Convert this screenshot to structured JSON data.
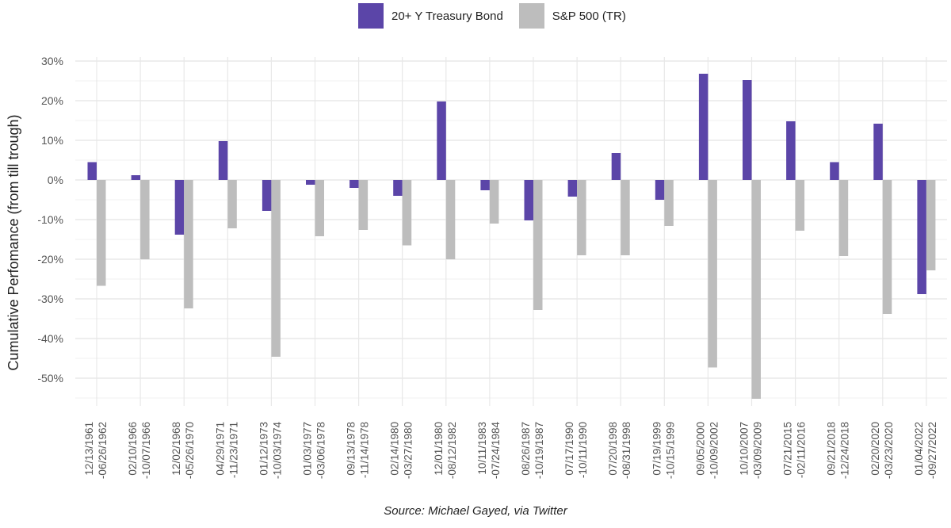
{
  "chart_data": {
    "type": "bar",
    "ylabel": "Cumulative Perfomance (from till trough)",
    "ylim": [
      -57,
      31
    ],
    "yticks": [
      30,
      20,
      10,
      0,
      -10,
      -20,
      -30,
      -40,
      -50
    ],
    "ytick_labels": [
      "30%",
      "20%",
      "10%",
      "0%",
      "-10%",
      "-20%",
      "-30%",
      "-40%",
      "-50%"
    ],
    "grid": true,
    "legend_position": "top-center",
    "categories": [
      [
        "12/13/1961",
        "-06/26/1962"
      ],
      [
        "02/10/1966",
        "-10/07/1966"
      ],
      [
        "12/02/1968",
        "-05/26/1970"
      ],
      [
        "04/29/1971",
        "-11/23/1971"
      ],
      [
        "01/12/1973",
        "-10/03/1974"
      ],
      [
        "01/03/1977",
        "-03/06/1978"
      ],
      [
        "09/13/1978",
        "-11/14/1978"
      ],
      [
        "02/14/1980",
        "-03/27/1980"
      ],
      [
        "12/01/1980",
        "-08/12/1982"
      ],
      [
        "10/11/1983",
        "-07/24/1984"
      ],
      [
        "08/26/1987",
        "-10/19/1987"
      ],
      [
        "07/17/1990",
        "-10/11/1990"
      ],
      [
        "07/20/1998",
        "-08/31/1998"
      ],
      [
        "07/19/1999",
        "-10/15/1999"
      ],
      [
        "09/05/2000",
        "-10/09/2002"
      ],
      [
        "10/10/2007",
        "-03/09/2009"
      ],
      [
        "07/21/2015",
        "-02/11/2016"
      ],
      [
        "09/21/2018",
        "-12/24/2018"
      ],
      [
        "02/20/2020",
        "-03/23/2020"
      ],
      [
        "01/04/2022",
        "-09/27/2022"
      ]
    ],
    "series": [
      {
        "name": "20+ Y Treasury Bond",
        "color": "#5b45a8",
        "values": [
          4.5,
          1.2,
          -13.8,
          9.8,
          -7.8,
          -1.2,
          -2.0,
          -4.0,
          19.8,
          -2.6,
          -10.2,
          -4.2,
          6.8,
          -5.0,
          26.8,
          25.2,
          14.8,
          4.5,
          14.2,
          -28.8
        ]
      },
      {
        "name": "S&P 500 (TR)",
        "color": "#bdbdbd",
        "values": [
          -26.7,
          -20.0,
          -32.4,
          -12.2,
          -44.6,
          -14.2,
          -12.6,
          -16.5,
          -20.0,
          -11.0,
          -32.8,
          -19.0,
          -19.0,
          -11.6,
          -47.3,
          -55.2,
          -12.8,
          -19.2,
          -33.8,
          -22.8
        ]
      }
    ]
  },
  "source_text": "Source: Michael Gayed, via Twitter"
}
